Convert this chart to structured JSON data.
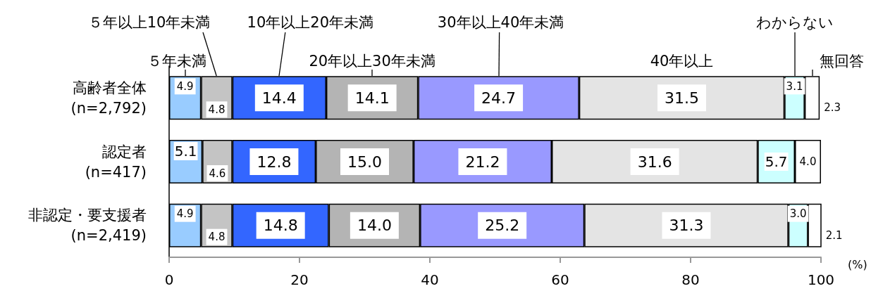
{
  "chart_data": {
    "type": "bar",
    "orientation": "horizontal",
    "stacked": true,
    "categories": [
      "高齢者全体\n(n=2,792)",
      "認定者\n(n=417)",
      "非認定・要支援者\n(n=2,419)"
    ],
    "xlabel": "(%)",
    "xlim": [
      0,
      100
    ],
    "xticks": [
      0,
      20,
      40,
      60,
      80,
      100
    ],
    "series": [
      {
        "name": "５年未満",
        "color": "#99ccff",
        "values": [
          4.9,
          5.1,
          4.9
        ],
        "value_labels": [
          "4.9",
          "5.1",
          "4.9"
        ]
      },
      {
        "name": "５年以上10年未満",
        "color": "#c4c4c4",
        "values": [
          4.8,
          4.6,
          4.8
        ],
        "value_labels": [
          "4.8",
          "4.6",
          "4.8"
        ]
      },
      {
        "name": "10年以上20年未満",
        "color": "#3366ff",
        "values": [
          14.4,
          12.8,
          14.8
        ],
        "value_labels": [
          "14.4",
          "12.8",
          "14.8"
        ]
      },
      {
        "name": "20年以上30年未満",
        "color": "#b4b4b4",
        "values": [
          14.1,
          15.0,
          14.0
        ],
        "value_labels": [
          "14.1",
          "15.0",
          "14.0"
        ]
      },
      {
        "name": "30年以上40年未満",
        "color": "#9999ff",
        "values": [
          24.7,
          21.2,
          25.2
        ],
        "value_labels": [
          "24.7",
          "21.2",
          "25.2"
        ]
      },
      {
        "name": "40年以上",
        "color": "#e4e4e4",
        "values": [
          31.5,
          31.6,
          31.3
        ],
        "value_labels": [
          "31.5",
          "31.6",
          "31.3"
        ]
      },
      {
        "name": "わからない",
        "color": "#ccffff",
        "values": [
          3.1,
          5.7,
          3.0
        ],
        "value_labels": [
          "3.1",
          "5.7",
          "3.0"
        ]
      },
      {
        "name": "無回答",
        "color": "#ffffff",
        "values": [
          2.3,
          4.0,
          2.1
        ],
        "value_labels": [
          "2.3",
          "4.0",
          "2.1"
        ]
      }
    ]
  }
}
